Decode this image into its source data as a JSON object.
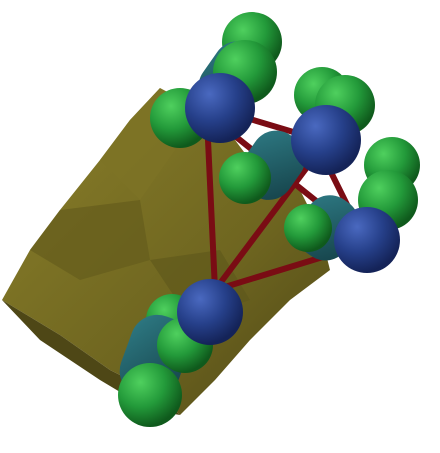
{
  "scene": {
    "background": "#ffffff",
    "colors": {
      "surface": "#6f6620",
      "surface_light": "#8a7f2a",
      "surface_dark": "#4e4716",
      "bond": "#7a0c14",
      "atom_blue": "#26408a",
      "atom_green": "#239a3a",
      "rod_teal": "#1f5a63"
    },
    "objects": [
      "molecular-surface",
      "bond",
      "blue-atom",
      "green-atom",
      "teal-rod"
    ]
  }
}
